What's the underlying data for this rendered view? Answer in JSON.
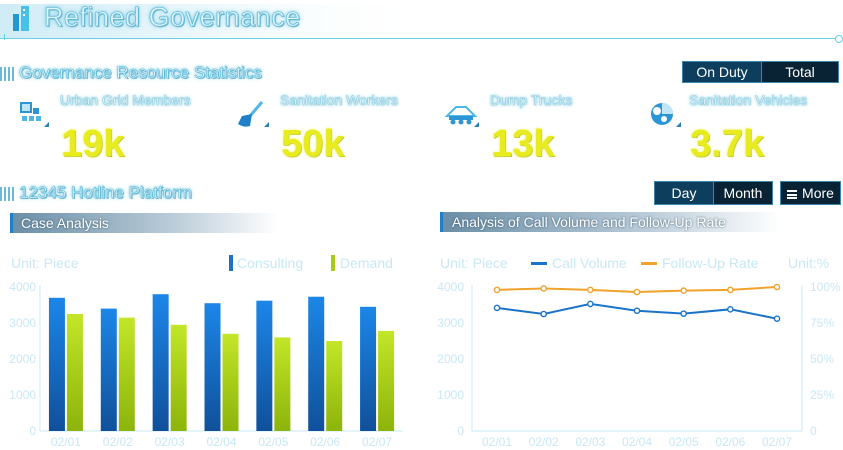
{
  "header": {
    "title": "Refined Governance"
  },
  "resources": {
    "title": "Governance Resource Statistics",
    "toggle": [
      {
        "label": "On Duty"
      },
      {
        "label": "Total"
      }
    ],
    "stats": [
      {
        "label": "Urban Grid Members",
        "value": "19k",
        "icon": "grid-members-icon"
      },
      {
        "label": "Sanitation Workers",
        "value": "50k",
        "icon": "broom-icon"
      },
      {
        "label": "Dump Trucks",
        "value": "13k",
        "icon": "dump-truck-icon"
      },
      {
        "label": "Sanitation Vehicles",
        "value": "3.7k",
        "icon": "sanitation-vehicle-icon"
      }
    ]
  },
  "hotline": {
    "title": "12345 Hotline Platform",
    "toggle": [
      {
        "label": "Day"
      },
      {
        "label": "Month"
      }
    ],
    "more_label": "More",
    "case_panel": {
      "title": "Case Analysis",
      "unit": "Unit: Piece",
      "legend": [
        {
          "label": "Consulting"
        },
        {
          "label": "Demand"
        }
      ]
    },
    "call_panel": {
      "title": "Analysis of Call Volume and Follow-Up Rate",
      "unit_left": "Unit: Piece",
      "unit_right": "Unit:%",
      "legend": [
        {
          "label": "Call Volume"
        },
        {
          "label": "Follow-Up Rate"
        }
      ]
    }
  },
  "chart_data": [
    {
      "type": "bar",
      "title": "Case Analysis",
      "categories": [
        "02/01",
        "02/02",
        "02/03",
        "02/04",
        "02/05",
        "02/06",
        "02/07"
      ],
      "series": [
        {
          "name": "Consulting",
          "values": [
            3700,
            3400,
            3800,
            3550,
            3620,
            3730,
            3450
          ]
        },
        {
          "name": "Demand",
          "values": [
            3250,
            3150,
            2950,
            2700,
            2600,
            2500,
            2780
          ]
        }
      ],
      "yticks": [
        0,
        1000,
        2000,
        3000,
        4000
      ],
      "ylim": [
        0,
        4000
      ],
      "colors": {
        "Consulting": "#1a73c8",
        "Demand": "#a7cc12"
      }
    },
    {
      "type": "line",
      "title": "Analysis of Call Volume and Follow-Up Rate",
      "categories": [
        "02/01",
        "02/02",
        "02/03",
        "02/04",
        "02/05",
        "02/06",
        "02/07"
      ],
      "series": [
        {
          "name": "Call Volume",
          "axis": "left",
          "values": [
            3420,
            3250,
            3530,
            3340,
            3260,
            3380,
            3120
          ]
        },
        {
          "name": "Follow-Up Rate",
          "axis": "right",
          "values": [
            98,
            99,
            98,
            96.5,
            97.5,
            98,
            100
          ]
        }
      ],
      "yticks_left": [
        0,
        1000,
        2000,
        3000,
        4000
      ],
      "ylim_left": [
        0,
        4000
      ],
      "yticks_right": [
        "0",
        "25%",
        "50%",
        "75%",
        "100%"
      ],
      "ylim_right": [
        0,
        100
      ],
      "colors": {
        "Call Volume": "#1a73c8",
        "Follow-Up Rate": "#f0a22a"
      }
    }
  ]
}
